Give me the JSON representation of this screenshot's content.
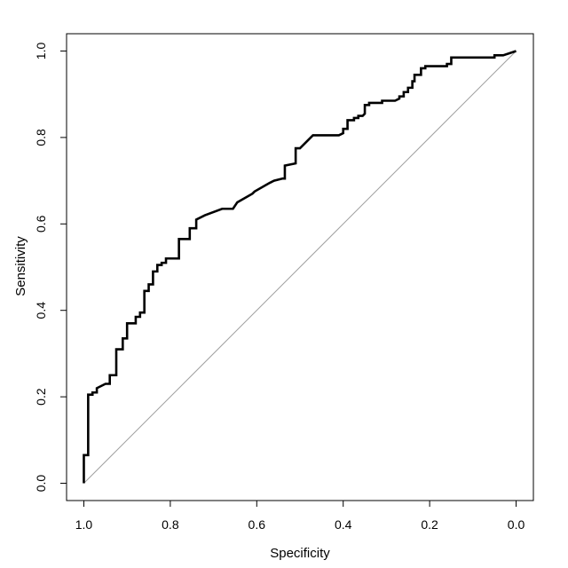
{
  "chart_data": {
    "type": "line",
    "title": "",
    "xlabel": "Specificity",
    "ylabel": "Sensitivity",
    "xlim": [
      1.04,
      -0.04
    ],
    "ylim": [
      -0.04,
      1.04
    ],
    "x_reversed": true,
    "grid": false,
    "legend": "none",
    "x_ticks": [
      1.0,
      0.8,
      0.6,
      0.4,
      0.2,
      0.0
    ],
    "x_tick_labels": [
      "1.0",
      "0.8",
      "0.6",
      "0.4",
      "0.2",
      "0.0"
    ],
    "y_ticks": [
      0.0,
      0.2,
      0.4,
      0.6,
      0.8,
      1.0
    ],
    "y_tick_labels": [
      "0.0",
      "0.2",
      "0.4",
      "0.6",
      "0.8",
      "1.0"
    ],
    "colors": {
      "roc": "#000000",
      "reference": "#a0a0a0",
      "axes": "#000000"
    },
    "reference_line": {
      "x": [
        1.0,
        0.0
      ],
      "y": [
        0.0,
        1.0
      ]
    },
    "series": [
      {
        "x": [
          1.0,
          1.0,
          0.99,
          0.99,
          0.98,
          0.98,
          0.97,
          0.97,
          0.95,
          0.94,
          0.94,
          0.925,
          0.925,
          0.91,
          0.91,
          0.9,
          0.9,
          0.88,
          0.88,
          0.87,
          0.87,
          0.86,
          0.86,
          0.85,
          0.85,
          0.84,
          0.84,
          0.83,
          0.83,
          0.82,
          0.82,
          0.81,
          0.81,
          0.78,
          0.78,
          0.755,
          0.755,
          0.74,
          0.74,
          0.72,
          0.68,
          0.655,
          0.645,
          0.61,
          0.605,
          0.57,
          0.56,
          0.54,
          0.535,
          0.535,
          0.51,
          0.51,
          0.5,
          0.49,
          0.47,
          0.43,
          0.41,
          0.4,
          0.4,
          0.39,
          0.39,
          0.375,
          0.375,
          0.365,
          0.365,
          0.355,
          0.35,
          0.35,
          0.34,
          0.34,
          0.31,
          0.31,
          0.28,
          0.27,
          0.27,
          0.26,
          0.26,
          0.25,
          0.25,
          0.24,
          0.24,
          0.235,
          0.235,
          0.22,
          0.22,
          0.21,
          0.21,
          0.16,
          0.16,
          0.15,
          0.15,
          0.12,
          0.05,
          0.05,
          0.03,
          0.0
        ],
        "y": [
          0.0,
          0.065,
          0.065,
          0.205,
          0.205,
          0.21,
          0.21,
          0.22,
          0.23,
          0.23,
          0.25,
          0.25,
          0.31,
          0.31,
          0.335,
          0.335,
          0.37,
          0.37,
          0.385,
          0.385,
          0.395,
          0.395,
          0.445,
          0.445,
          0.46,
          0.46,
          0.49,
          0.49,
          0.505,
          0.505,
          0.51,
          0.51,
          0.52,
          0.52,
          0.565,
          0.565,
          0.59,
          0.59,
          0.61,
          0.62,
          0.635,
          0.635,
          0.65,
          0.67,
          0.675,
          0.695,
          0.7,
          0.705,
          0.705,
          0.735,
          0.74,
          0.775,
          0.775,
          0.785,
          0.805,
          0.805,
          0.805,
          0.81,
          0.82,
          0.82,
          0.84,
          0.84,
          0.845,
          0.845,
          0.85,
          0.85,
          0.855,
          0.875,
          0.875,
          0.88,
          0.88,
          0.885,
          0.885,
          0.89,
          0.895,
          0.895,
          0.905,
          0.905,
          0.915,
          0.915,
          0.93,
          0.93,
          0.945,
          0.945,
          0.96,
          0.96,
          0.965,
          0.965,
          0.97,
          0.97,
          0.985,
          0.985,
          0.985,
          0.99,
          0.99,
          1.0
        ]
      }
    ]
  }
}
